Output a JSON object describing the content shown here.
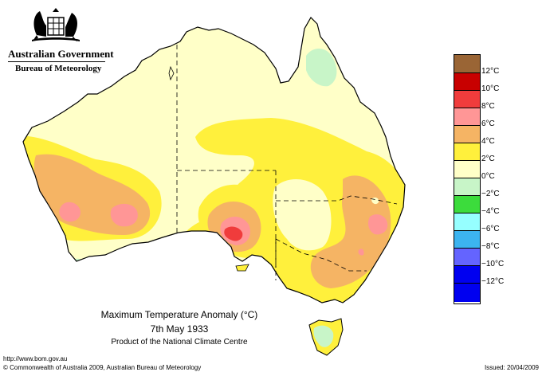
{
  "header": {
    "government": "Australian Government",
    "bureau": "Bureau of Meteorology"
  },
  "map": {
    "title": "Maximum Temperature Anomaly (°C)",
    "date": "7th May 1933",
    "product": "Product of the National Climate Centre"
  },
  "legend": {
    "items": [
      {
        "label": "",
        "color": "#9a6535"
      },
      {
        "label": "12°C",
        "color": "#c80000"
      },
      {
        "label": "10°C",
        "color": "#f03c3c"
      },
      {
        "label": "8°C",
        "color": "#ff9696"
      },
      {
        "label": "6°C",
        "color": "#f5b464"
      },
      {
        "label": "4°C",
        "color": "#fff03c"
      },
      {
        "label": "2°C",
        "color": "#ffffc8"
      },
      {
        "label": "0°C",
        "color": "#c8f5c8"
      },
      {
        "label": "−2°C",
        "color": "#3cdc3c"
      },
      {
        "label": "−4°C",
        "color": "#96ffff"
      },
      {
        "label": "−6°C",
        "color": "#3cb4f0"
      },
      {
        "label": "−8°C",
        "color": "#6464ff"
      },
      {
        "label": "−10°C",
        "color": "#0000f0"
      },
      {
        "label": "−12°C",
        "color": ""
      }
    ]
  },
  "footer": {
    "url": "http://www.bom.gov.au",
    "copyright": "© Commonwealth of Australia 2009, Australian Bureau of Meteorology",
    "issued": "Issued: 20/04/2009"
  }
}
